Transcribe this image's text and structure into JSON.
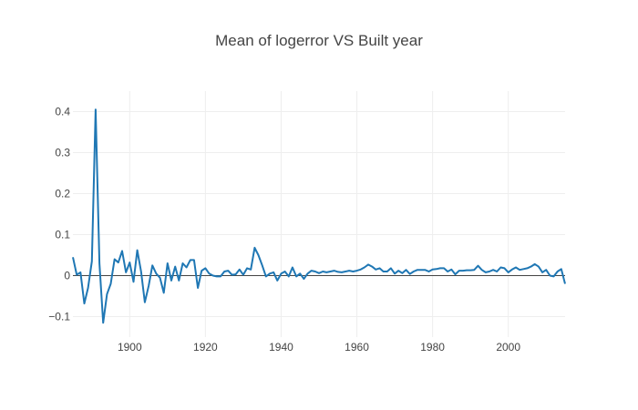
{
  "chart_data": {
    "type": "line",
    "title": "Mean of logerror VS Built year",
    "xlabel": "",
    "ylabel": "",
    "xlim": [
      1885,
      2015
    ],
    "ylim": [
      -0.15,
      0.45
    ],
    "grid": true,
    "x_ticks": [
      1900,
      1920,
      1940,
      1960,
      1980,
      2000
    ],
    "y_ticks": [
      -0.1,
      0,
      0.1,
      0.2,
      0.3,
      0.4
    ],
    "y_tick_labels": [
      "−0.1",
      "0",
      "0.1",
      "0.2",
      "0.3",
      "0.4"
    ],
    "line_color": "#1f77b4",
    "zero_line_color": "#444444",
    "series": [
      {
        "x": [
          1885,
          1886,
          1887,
          1888,
          1889,
          1890,
          1891,
          1892,
          1893,
          1894,
          1895,
          1896,
          1897,
          1898,
          1899,
          1900,
          1901,
          1902,
          1903,
          1904,
          1905,
          1906,
          1907,
          1908,
          1909,
          1910,
          1911,
          1912,
          1913,
          1914,
          1915,
          1916,
          1917,
          1918,
          1919,
          1920,
          1921,
          1922,
          1923,
          1924,
          1925,
          1926,
          1927,
          1928,
          1929,
          1930,
          1931,
          1932,
          1933,
          1934,
          1935,
          1936,
          1937,
          1938,
          1939,
          1940,
          1941,
          1942,
          1943,
          1944,
          1945,
          1946,
          1947,
          1948,
          1949,
          1950,
          1951,
          1952,
          1953,
          1954,
          1955,
          1956,
          1957,
          1958,
          1959,
          1960,
          1961,
          1962,
          1963,
          1964,
          1965,
          1966,
          1967,
          1968,
          1969,
          1970,
          1971,
          1972,
          1973,
          1974,
          1975,
          1976,
          1977,
          1978,
          1979,
          1980,
          1981,
          1982,
          1983,
          1984,
          1985,
          1986,
          1987,
          1988,
          1989,
          1990,
          1991,
          1992,
          1993,
          1994,
          1995,
          1996,
          1997,
          1998,
          1999,
          2000,
          2001,
          2002,
          2003,
          2004,
          2005,
          2006,
          2007,
          2008,
          2009,
          2010,
          2011,
          2012,
          2013,
          2014,
          2015
        ],
        "values": [
          0.045,
          0.002,
          0.008,
          -0.068,
          -0.03,
          0.035,
          0.405,
          0.03,
          -0.115,
          -0.045,
          -0.02,
          0.04,
          0.032,
          0.06,
          0.008,
          0.032,
          -0.015,
          0.062,
          0.01,
          -0.065,
          -0.025,
          0.025,
          0.005,
          -0.005,
          -0.042,
          0.03,
          -0.012,
          0.022,
          -0.012,
          0.03,
          0.02,
          0.038,
          0.038,
          -0.03,
          0.012,
          0.018,
          0.005,
          0.0,
          -0.002,
          -0.002,
          0.01,
          0.012,
          0.002,
          0.003,
          0.015,
          0.002,
          0.018,
          0.015,
          0.068,
          0.05,
          0.025,
          -0.002,
          0.005,
          0.008,
          -0.012,
          0.005,
          0.01,
          -0.002,
          0.02,
          -0.002,
          0.005,
          -0.008,
          0.005,
          0.012,
          0.01,
          0.006,
          0.01,
          0.008,
          0.01,
          0.012,
          0.009,
          0.008,
          0.01,
          0.012,
          0.01,
          0.012,
          0.015,
          0.02,
          0.027,
          0.022,
          0.015,
          0.018,
          0.01,
          0.01,
          0.018,
          0.005,
          0.012,
          0.006,
          0.014,
          0.004,
          0.01,
          0.014,
          0.014,
          0.014,
          0.01,
          0.015,
          0.016,
          0.018,
          0.018,
          0.01,
          0.015,
          0.003,
          0.012,
          0.012,
          0.013,
          0.013,
          0.014,
          0.024,
          0.014,
          0.008,
          0.01,
          0.014,
          0.01,
          0.02,
          0.018,
          0.008,
          0.015,
          0.02,
          0.014,
          0.016,
          0.018,
          0.022,
          0.028,
          0.022,
          0.008,
          0.014,
          0.0,
          -0.002,
          0.01,
          0.016,
          -0.02
        ]
      }
    ]
  }
}
